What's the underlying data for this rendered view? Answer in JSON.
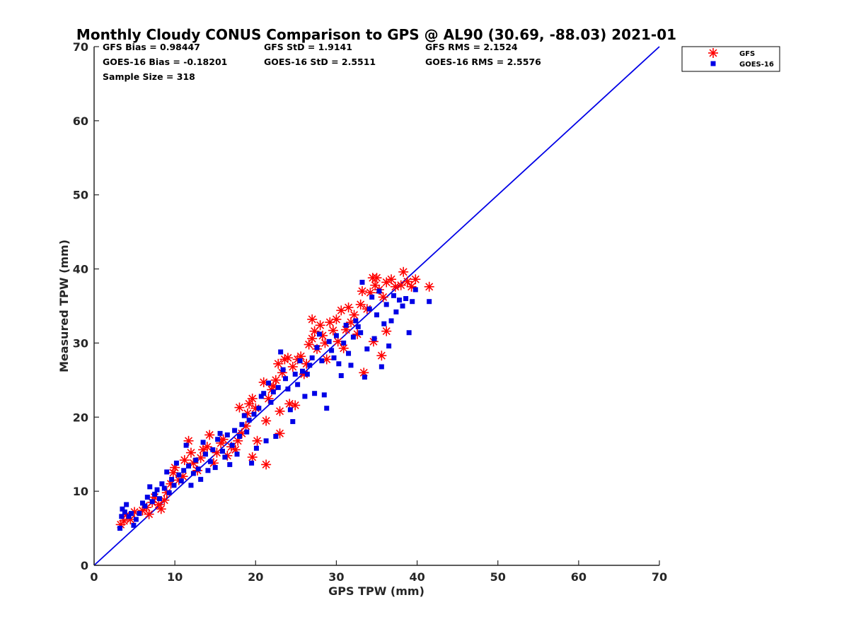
{
  "chart_data": {
    "type": "scatter",
    "title": "Monthly Cloudy CONUS Comparison to GPS @ AL90 (30.69, -88.03) 2021-01",
    "xlabel": "GPS TPW (mm)",
    "ylabel": "Measured TPW (mm)",
    "xlim": [
      0,
      70
    ],
    "ylim": [
      0,
      70
    ],
    "xticks": [
      "0",
      "10",
      "20",
      "30",
      "40",
      "50",
      "60",
      "70"
    ],
    "yticks": [
      "0",
      "10",
      "20",
      "30",
      "40",
      "50",
      "60",
      "70"
    ],
    "grid": false,
    "legend_position": "top-right (outside plot)",
    "reference_line": {
      "x": [
        0,
        70
      ],
      "y": [
        0,
        70
      ],
      "color": "#0000e6"
    },
    "stats": {
      "gfs_bias": "GFS Bias = 0.98447",
      "goes_bias": "GOES-16 Bias = -0.18201",
      "sample_size": "Sample Size = 318",
      "gfs_std": "GFS StD = 1.9141",
      "goes_std": "GOES-16 StD = 2.5511",
      "gfs_rms": "GFS RMS = 2.1524",
      "goes_rms": "GOES-16 RMS = 2.5576"
    },
    "series": [
      {
        "name": "GFS",
        "color": "#ff0000",
        "marker": "asterisk",
        "points": [
          [
            3.3,
            5.5
          ],
          [
            3.7,
            6.0
          ],
          [
            4.0,
            6.8
          ],
          [
            4.5,
            6.2
          ],
          [
            5.0,
            7.2
          ],
          [
            6.0,
            7.4
          ],
          [
            6.5,
            7.8
          ],
          [
            6.8,
            6.9
          ],
          [
            7.2,
            8.5
          ],
          [
            7.5,
            9.2
          ],
          [
            8.0,
            8.2
          ],
          [
            8.3,
            7.6
          ],
          [
            8.7,
            8.8
          ],
          [
            9.0,
            9.8
          ],
          [
            9.5,
            11.0
          ],
          [
            9.8,
            12.5
          ],
          [
            10.0,
            13.2
          ],
          [
            10.5,
            11.5
          ],
          [
            11.0,
            12.0
          ],
          [
            11.2,
            14.2
          ],
          [
            11.7,
            16.8
          ],
          [
            12.0,
            15.2
          ],
          [
            12.3,
            13.8
          ],
          [
            12.8,
            12.8
          ],
          [
            13.2,
            14.5
          ],
          [
            13.5,
            15.6
          ],
          [
            14.0,
            16.0
          ],
          [
            14.3,
            17.6
          ],
          [
            14.8,
            13.8
          ],
          [
            15.2,
            15.2
          ],
          [
            15.7,
            16.5
          ],
          [
            16.0,
            17.0
          ],
          [
            16.5,
            14.8
          ],
          [
            17.0,
            16.0
          ],
          [
            17.5,
            15.6
          ],
          [
            17.8,
            16.8
          ],
          [
            18.0,
            21.3
          ],
          [
            18.3,
            17.8
          ],
          [
            18.8,
            18.8
          ],
          [
            19.0,
            20.5
          ],
          [
            19.2,
            21.8
          ],
          [
            19.6,
            22.5
          ],
          [
            19.6,
            14.6
          ],
          [
            20.0,
            21.2
          ],
          [
            20.2,
            16.8
          ],
          [
            21.0,
            24.7
          ],
          [
            21.3,
            19.5
          ],
          [
            21.3,
            13.6
          ],
          [
            21.6,
            22.5
          ],
          [
            22.0,
            23.7
          ],
          [
            22.2,
            24.2
          ],
          [
            22.5,
            25.0
          ],
          [
            22.8,
            27.2
          ],
          [
            23.0,
            20.8
          ],
          [
            23.0,
            17.8
          ],
          [
            23.3,
            26.0
          ],
          [
            23.6,
            27.8
          ],
          [
            24.0,
            28.0
          ],
          [
            24.2,
            21.8
          ],
          [
            24.6,
            26.8
          ],
          [
            24.9,
            21.6
          ],
          [
            25.2,
            27.8
          ],
          [
            25.6,
            28.2
          ],
          [
            26.0,
            25.8
          ],
          [
            26.3,
            27.2
          ],
          [
            26.6,
            29.8
          ],
          [
            27.0,
            30.6
          ],
          [
            27.0,
            33.2
          ],
          [
            27.3,
            31.6
          ],
          [
            27.6,
            29.2
          ],
          [
            28.0,
            32.4
          ],
          [
            28.3,
            31.0
          ],
          [
            28.6,
            30.0
          ],
          [
            28.8,
            27.8
          ],
          [
            29.2,
            32.8
          ],
          [
            29.6,
            31.7
          ],
          [
            30.0,
            33.2
          ],
          [
            30.2,
            30.2
          ],
          [
            30.6,
            34.4
          ],
          [
            30.9,
            29.3
          ],
          [
            31.2,
            31.8
          ],
          [
            31.5,
            34.8
          ],
          [
            31.8,
            32.8
          ],
          [
            32.2,
            33.8
          ],
          [
            32.6,
            31.2
          ],
          [
            33.0,
            35.2
          ],
          [
            33.2,
            37.0
          ],
          [
            33.4,
            26.0
          ],
          [
            33.8,
            34.6
          ],
          [
            34.2,
            36.8
          ],
          [
            34.5,
            38.8
          ],
          [
            34.6,
            30.2
          ],
          [
            34.8,
            37.8
          ],
          [
            35.0,
            38.8
          ],
          [
            35.3,
            37.2
          ],
          [
            35.6,
            28.3
          ],
          [
            35.8,
            36.2
          ],
          [
            36.2,
            38.2
          ],
          [
            36.2,
            31.6
          ],
          [
            36.8,
            38.6
          ],
          [
            37.3,
            37.6
          ],
          [
            38.0,
            37.8
          ],
          [
            38.3,
            39.6
          ],
          [
            38.8,
            38.3
          ],
          [
            39.3,
            37.6
          ],
          [
            39.8,
            38.6
          ],
          [
            41.5,
            37.6
          ]
        ]
      },
      {
        "name": "GOES-16",
        "color": "#0000e6",
        "marker": "square",
        "points": [
          [
            3.2,
            5.0
          ],
          [
            3.4,
            6.6
          ],
          [
            3.5,
            7.6
          ],
          [
            3.8,
            7.2
          ],
          [
            4.0,
            8.2
          ],
          [
            4.3,
            6.6
          ],
          [
            4.6,
            7.0
          ],
          [
            4.9,
            5.4
          ],
          [
            5.2,
            6.2
          ],
          [
            5.6,
            7.0
          ],
          [
            6.0,
            8.4
          ],
          [
            6.3,
            8.0
          ],
          [
            6.6,
            9.2
          ],
          [
            6.9,
            10.6
          ],
          [
            7.2,
            8.6
          ],
          [
            7.5,
            9.6
          ],
          [
            7.8,
            10.2
          ],
          [
            8.1,
            9.0
          ],
          [
            8.4,
            11.0
          ],
          [
            8.7,
            10.4
          ],
          [
            9.0,
            12.6
          ],
          [
            9.3,
            9.8
          ],
          [
            9.6,
            11.6
          ],
          [
            9.9,
            10.8
          ],
          [
            10.2,
            13.8
          ],
          [
            10.5,
            12.2
          ],
          [
            10.8,
            11.4
          ],
          [
            11.1,
            12.8
          ],
          [
            11.4,
            16.2
          ],
          [
            11.7,
            13.4
          ],
          [
            12.0,
            10.8
          ],
          [
            12.3,
            12.4
          ],
          [
            12.6,
            14.2
          ],
          [
            12.9,
            13.0
          ],
          [
            13.2,
            11.6
          ],
          [
            13.5,
            16.6
          ],
          [
            13.8,
            15.0
          ],
          [
            14.1,
            12.8
          ],
          [
            14.4,
            14.0
          ],
          [
            14.7,
            15.6
          ],
          [
            15.0,
            13.2
          ],
          [
            15.3,
            17.0
          ],
          [
            15.6,
            17.8
          ],
          [
            15.9,
            15.4
          ],
          [
            16.2,
            14.6
          ],
          [
            16.5,
            17.6
          ],
          [
            16.8,
            13.6
          ],
          [
            17.1,
            16.2
          ],
          [
            17.4,
            18.2
          ],
          [
            17.7,
            15.0
          ],
          [
            18.0,
            17.4
          ],
          [
            18.3,
            19.0
          ],
          [
            18.6,
            20.2
          ],
          [
            18.9,
            18.0
          ],
          [
            19.2,
            19.6
          ],
          [
            19.5,
            13.8
          ],
          [
            19.8,
            20.4
          ],
          [
            20.1,
            15.8
          ],
          [
            20.4,
            21.2
          ],
          [
            20.7,
            22.8
          ],
          [
            21.0,
            23.2
          ],
          [
            21.3,
            16.8
          ],
          [
            21.6,
            24.6
          ],
          [
            21.9,
            22.0
          ],
          [
            22.2,
            23.4
          ],
          [
            22.5,
            17.4
          ],
          [
            22.8,
            24.0
          ],
          [
            23.1,
            28.8
          ],
          [
            23.4,
            26.4
          ],
          [
            23.7,
            25.2
          ],
          [
            24.0,
            23.8
          ],
          [
            24.3,
            21.0
          ],
          [
            24.6,
            19.4
          ],
          [
            24.9,
            25.8
          ],
          [
            25.2,
            24.4
          ],
          [
            25.5,
            27.6
          ],
          [
            25.8,
            26.2
          ],
          [
            26.1,
            22.8
          ],
          [
            26.4,
            25.8
          ],
          [
            26.7,
            27.0
          ],
          [
            27.0,
            28.0
          ],
          [
            27.3,
            23.2
          ],
          [
            27.6,
            29.4
          ],
          [
            27.9,
            31.2
          ],
          [
            28.2,
            27.6
          ],
          [
            28.5,
            23.0
          ],
          [
            28.8,
            21.2
          ],
          [
            29.1,
            30.2
          ],
          [
            29.4,
            29.0
          ],
          [
            29.7,
            28.0
          ],
          [
            30.0,
            31.0
          ],
          [
            30.3,
            27.2
          ],
          [
            30.6,
            25.6
          ],
          [
            30.9,
            30.0
          ],
          [
            31.2,
            32.4
          ],
          [
            31.5,
            28.6
          ],
          [
            31.8,
            27.0
          ],
          [
            32.1,
            30.8
          ],
          [
            32.4,
            33.0
          ],
          [
            32.7,
            32.2
          ],
          [
            33.0,
            31.4
          ],
          [
            33.2,
            38.2
          ],
          [
            33.5,
            25.4
          ],
          [
            33.8,
            29.2
          ],
          [
            34.1,
            34.6
          ],
          [
            34.4,
            36.2
          ],
          [
            34.7,
            30.6
          ],
          [
            35.0,
            33.8
          ],
          [
            35.3,
            37.0
          ],
          [
            35.6,
            26.8
          ],
          [
            35.9,
            32.6
          ],
          [
            36.2,
            35.2
          ],
          [
            36.5,
            29.6
          ],
          [
            36.8,
            33.0
          ],
          [
            37.1,
            36.4
          ],
          [
            37.4,
            34.2
          ],
          [
            37.8,
            35.8
          ],
          [
            38.2,
            35.0
          ],
          [
            38.6,
            36.0
          ],
          [
            39.0,
            31.4
          ],
          [
            39.4,
            35.6
          ],
          [
            39.8,
            37.2
          ],
          [
            41.5,
            35.6
          ]
        ]
      }
    ]
  }
}
